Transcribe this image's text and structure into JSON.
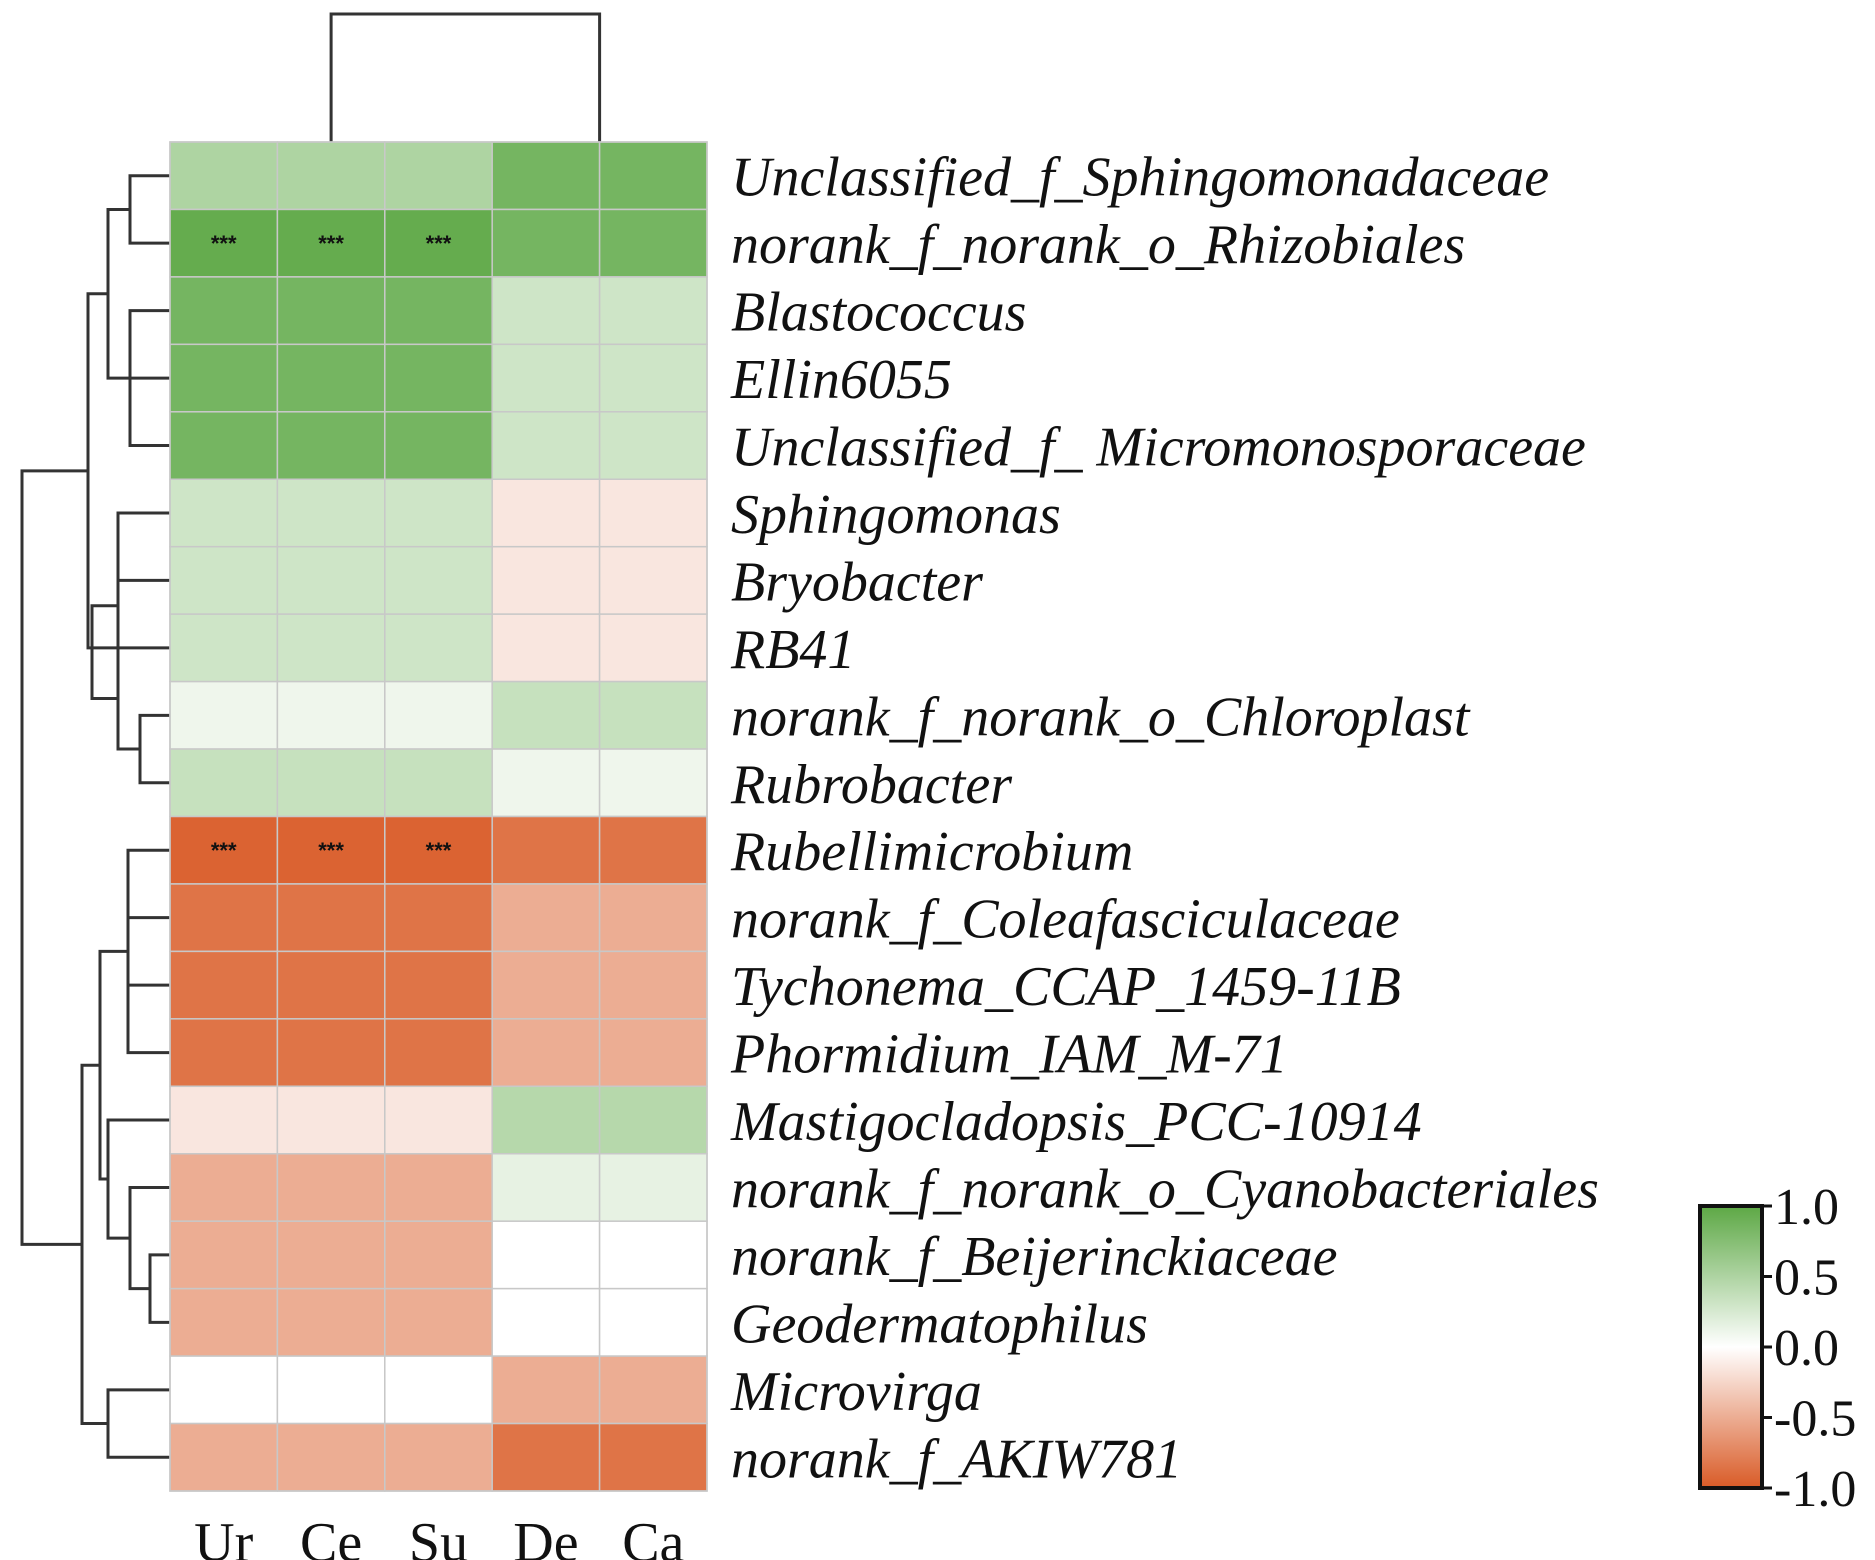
{
  "chart_data": {
    "type": "heatmap",
    "title": "",
    "columns": [
      "Ur",
      "Ce",
      "Su",
      "De",
      "Ca"
    ],
    "rows": [
      "Unclassified_f_Sphingomonadaceae",
      "norank_f_norank_o_Rhizobiales",
      "Blastococcus",
      "Ellin6055",
      "Unclassified_f_ Micromonosporaceae",
      "Sphingomonas",
      "Bryobacter",
      "RB41",
      "norank_f_norank_o_Chloroplast",
      "Rubrobacter",
      "Rubellimicrobium",
      "norank_f_Coleafasciculaceae",
      "Tychonema_CCAP_1459-11B",
      "Phormidium_IAM_M-71",
      "Mastigocladopsis_PCC-10914",
      "norank_f_norank_o_Cyanobacteriales",
      "norank_f_Beijerinckiaceae",
      "Geodermatophilus",
      "Microvirga",
      "norank_f_AKIW781"
    ],
    "values": [
      [
        0.5,
        0.5,
        0.5,
        0.85,
        0.85
      ],
      [
        0.95,
        0.95,
        0.95,
        0.85,
        0.85
      ],
      [
        0.85,
        0.85,
        0.85,
        0.3,
        0.3
      ],
      [
        0.85,
        0.85,
        0.85,
        0.3,
        0.3
      ],
      [
        0.85,
        0.85,
        0.85,
        0.3,
        0.3
      ],
      [
        0.3,
        0.3,
        0.3,
        -0.15,
        -0.15
      ],
      [
        0.3,
        0.3,
        0.3,
        -0.15,
        -0.15
      ],
      [
        0.3,
        0.3,
        0.3,
        -0.15,
        -0.15
      ],
      [
        0.1,
        0.1,
        0.1,
        0.35,
        0.35
      ],
      [
        0.35,
        0.35,
        0.35,
        0.1,
        0.1
      ],
      [
        -0.95,
        -0.95,
        -0.95,
        -0.85,
        -0.85
      ],
      [
        -0.85,
        -0.85,
        -0.85,
        -0.5,
        -0.5
      ],
      [
        -0.85,
        -0.85,
        -0.85,
        -0.5,
        -0.5
      ],
      [
        -0.85,
        -0.85,
        -0.85,
        -0.5,
        -0.5
      ],
      [
        -0.15,
        -0.15,
        -0.15,
        0.45,
        0.45
      ],
      [
        -0.5,
        -0.5,
        -0.5,
        0.15,
        0.15
      ],
      [
        -0.5,
        -0.5,
        -0.5,
        0.0,
        0.0
      ],
      [
        -0.5,
        -0.5,
        -0.5,
        0.0,
        0.0
      ],
      [
        0.0,
        0.0,
        0.0,
        -0.5,
        -0.5
      ],
      [
        -0.5,
        -0.5,
        -0.5,
        -0.85,
        -0.85
      ]
    ],
    "significance": [
      [
        "",
        "",
        "",
        "",
        ""
      ],
      [
        "***",
        "***",
        "***",
        "",
        ""
      ],
      [
        "",
        "",
        "",
        "",
        ""
      ],
      [
        "",
        "",
        "",
        "",
        ""
      ],
      [
        "",
        "",
        "",
        "",
        ""
      ],
      [
        "",
        "",
        "",
        "",
        ""
      ],
      [
        "",
        "",
        "",
        "",
        ""
      ],
      [
        "",
        "",
        "",
        "",
        ""
      ],
      [
        "",
        "",
        "",
        "",
        ""
      ],
      [
        "",
        "",
        "",
        "",
        ""
      ],
      [
        "***",
        "***",
        "***",
        "",
        ""
      ],
      [
        "",
        "",
        "",
        "",
        ""
      ],
      [
        "",
        "",
        "",
        "",
        ""
      ],
      [
        "",
        "",
        "",
        "",
        ""
      ],
      [
        "",
        "",
        "",
        "",
        ""
      ],
      [
        "",
        "",
        "",
        "",
        ""
      ],
      [
        "",
        "",
        "",
        "",
        ""
      ],
      [
        "",
        "",
        "",
        "",
        ""
      ],
      [
        "",
        "",
        "",
        "",
        ""
      ],
      [
        "",
        "",
        "",
        "",
        ""
      ]
    ],
    "colorbar": {
      "ticks": [
        "1.0",
        "0.5",
        "0.0",
        "-0.5",
        "-1.0"
      ],
      "range": [
        -1.0,
        1.0
      ],
      "colors": {
        "positive": "#5da845",
        "neutral": "#ffffff",
        "negative": "#d95b27"
      }
    },
    "column_dendrogram": [
      [
        "Ur",
        "Ce",
        "Su"
      ],
      [
        "De",
        "Ca"
      ]
    ],
    "row_dendrogram": "hierarchical clustering of rows"
  }
}
